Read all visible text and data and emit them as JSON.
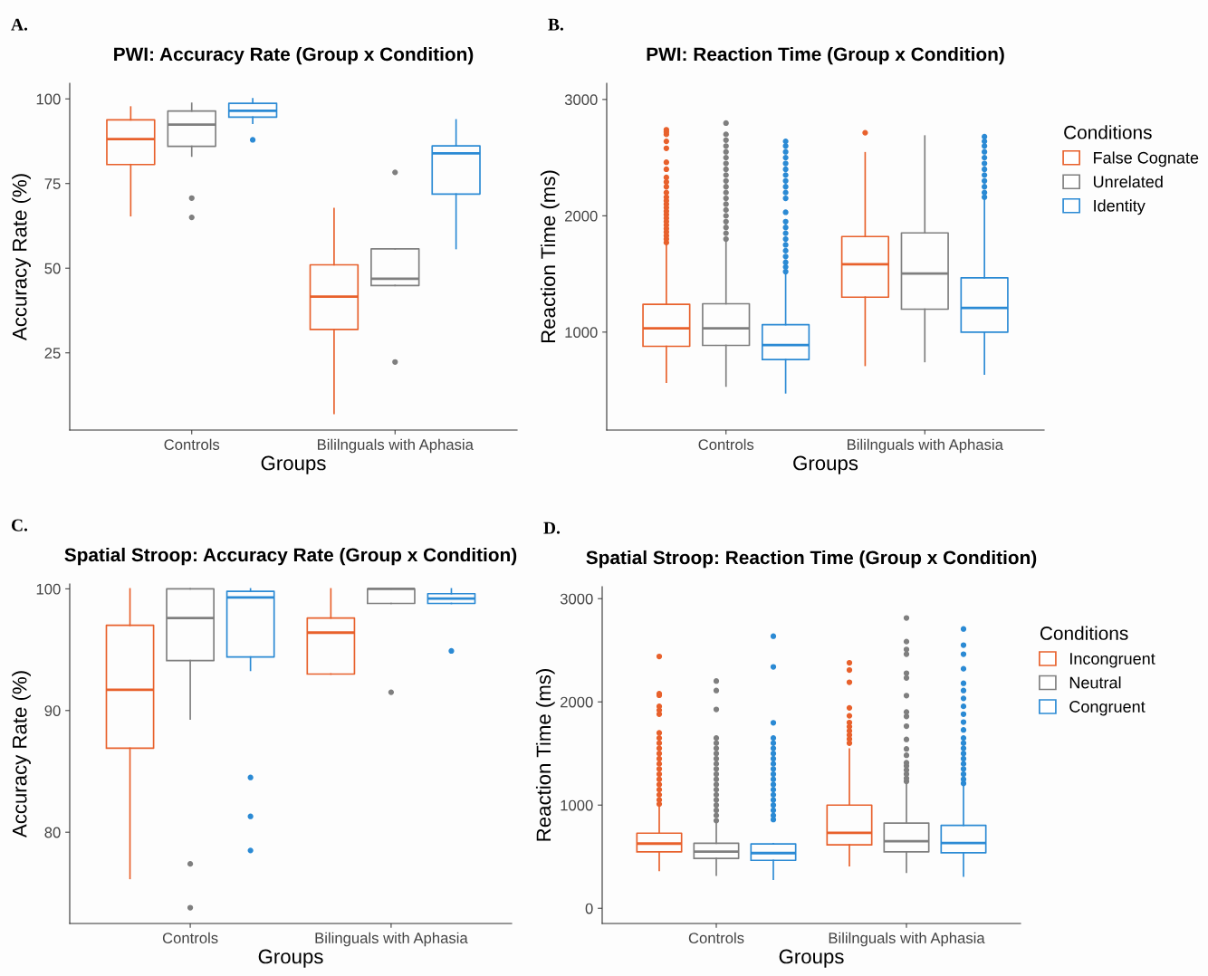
{
  "chart_data": [
    {
      "type": "box",
      "title": "PWI: Accuracy Rate (Group x Condition)",
      "xlabel": "Groups",
      "ylabel": "Accuracy Rate (%)",
      "annotations": [
        "A."
      ],
      "categories": [
        "Controls",
        "Bililnguals with Aphasia"
      ],
      "ylim": [
        2.2,
        104.6
      ],
      "yticks": [
        25,
        50,
        75,
        100
      ],
      "grid": false,
      "legend": false,
      "series": [
        {
          "color": "#e8612c",
          "boxes": [
            {
              "low": 65.5,
              "q1": 80.6,
              "median": 88.1,
              "q3": 93.8,
              "high": 97.6
            },
            {
              "low": 7.1,
              "q1": 31.9,
              "median": 41.6,
              "q3": 51.0,
              "high": 67.6
            }
          ]
        },
        {
          "color": "#7f7f7f",
          "boxes": [
            {
              "low": 83.1,
              "q1": 86.0,
              "median": 92.4,
              "q3": 96.4,
              "high": 98.7,
              "outliers": [
                70.7,
                65.0
              ]
            },
            {
              "low": 44.9,
              "q1": 44.9,
              "median": 46.9,
              "q3": 55.7,
              "high": 55.7,
              "outliers": [
                78.3,
                22.3
              ]
            }
          ]
        },
        {
          "color": "#2b8ad4",
          "boxes": [
            {
              "low": 92.8,
              "q1": 94.6,
              "median": 96.5,
              "q3": 98.7,
              "high": 100,
              "outliers": [
                87.9
              ]
            },
            {
              "low": 55.8,
              "q1": 71.9,
              "median": 83.9,
              "q3": 86.1,
              "high": 93.8
            }
          ]
        }
      ]
    },
    {
      "type": "box",
      "title": "PWI: Reaction Time (Group x Condition)",
      "xlabel": "Groups",
      "ylabel": "Reaction Time (ms)",
      "annotations": [
        "B."
      ],
      "categories": [
        "Controls",
        "Bililnguals with Aphasia"
      ],
      "ylim": [
        158,
        3139
      ],
      "yticks": [
        1000,
        2000,
        3000
      ],
      "grid": false,
      "legend": "right",
      "legend_title": "Conditions",
      "series": [
        {
          "name": "False Cognate",
          "color": "#e8612c",
          "boxes": [
            {
              "low": 569,
              "q1": 878,
              "median": 1033,
              "q3": 1239,
              "high": 1764,
              "outliers": [
                1770,
                1800,
                1830,
                1860,
                1890,
                1920,
                1950,
                1980,
                2010,
                2040,
                2070,
                2100,
                2130,
                2160,
                2200,
                2250,
                2290,
                2330,
                2400,
                2460,
                2580,
                2640,
                2700,
                2720,
                2740
              ]
            },
            {
              "low": 714,
              "q1": 1300,
              "median": 1583,
              "q3": 1822,
              "high": 2542,
              "outliers": [
                2714
              ]
            }
          ]
        },
        {
          "name": "Unrelated",
          "color": "#7f7f7f",
          "boxes": [
            {
              "low": 536,
              "q1": 886,
              "median": 1033,
              "q3": 1244,
              "high": 1792,
              "outliers": [
                1800,
                1850,
                1900,
                1950,
                2000,
                2050,
                2100,
                2150,
                2200,
                2250,
                2300,
                2350,
                2400,
                2450,
                2500,
                2550,
                2600,
                2650,
                2700,
                2797
              ]
            },
            {
              "low": 747,
              "q1": 1197,
              "median": 1503,
              "q3": 1853,
              "high": 2686
            }
          ]
        },
        {
          "name": "Identity",
          "color": "#2b8ad4",
          "boxes": [
            {
              "low": 478,
              "q1": 764,
              "median": 889,
              "q3": 1064,
              "high": 1514,
              "outliers": [
                1520,
                1560,
                1600,
                1650,
                1700,
                1750,
                1800,
                1850,
                1900,
                1950,
                2030,
                2150,
                2200,
                2250,
                2300,
                2350,
                2400,
                2450,
                2500,
                2550,
                2600,
                2640
              ]
            },
            {
              "low": 639,
              "q1": 1000,
              "median": 1208,
              "q3": 1467,
              "high": 2153,
              "outliers": [
                2160,
                2200,
                2250,
                2300,
                2350,
                2400,
                2450,
                2500,
                2550,
                2600,
                2640,
                2680
              ]
            }
          ]
        }
      ]
    },
    {
      "type": "box",
      "title": "Spatial Stroop: Accuracy Rate (Group x Condition)",
      "xlabel": "Groups",
      "ylabel": "Accuracy Rate (%)",
      "annotations": [
        "C."
      ],
      "categories": [
        "Controls",
        "Bilinguals with Aphasia"
      ],
      "ylim": [
        72.5,
        100.4
      ],
      "yticks": [
        80,
        90,
        100
      ],
      "grid": false,
      "legend": false,
      "series": [
        {
          "color": "#e8612c",
          "boxes": [
            {
              "low": 76.2,
              "q1": 86.9,
              "median": 91.7,
              "q3": 97.0,
              "high": 100
            },
            {
              "low": 93.0,
              "q1": 93.0,
              "median": 96.4,
              "q3": 97.6,
              "high": 100
            }
          ]
        },
        {
          "color": "#7f7f7f",
          "boxes": [
            {
              "low": 89.3,
              "q1": 94.1,
              "median": 97.6,
              "q3": 100,
              "high": 100,
              "outliers": [
                77.4,
                73.8
              ]
            },
            {
              "low": 98.8,
              "q1": 98.8,
              "median": 100,
              "q3": 100,
              "high": 100,
              "outliers": [
                91.5
              ]
            }
          ]
        },
        {
          "color": "#2b8ad4",
          "boxes": [
            {
              "low": 93.3,
              "q1": 94.4,
              "median": 99.3,
              "q3": 99.8,
              "high": 100,
              "outliers": [
                84.5,
                81.3,
                78.5
              ]
            },
            {
              "low": 98.8,
              "q1": 98.8,
              "median": 99.2,
              "q3": 99.6,
              "high": 100,
              "outliers": [
                94.9
              ]
            }
          ]
        }
      ]
    },
    {
      "type": "box",
      "title": "Spatial Stroop: Reaction Time (Group x Condition)",
      "xlabel": "Groups",
      "ylabel": "Reaction Time (ms)",
      "annotations": [
        "D."
      ],
      "categories": [
        "Controls",
        "Bililnguals with Aphasia"
      ],
      "ylim": [
        -147,
        3116
      ],
      "yticks": [
        0,
        1000,
        2000,
        3000
      ],
      "grid": false,
      "legend": "right",
      "legend_title": "Conditions",
      "series": [
        {
          "name": "Incongruent",
          "color": "#e8612c",
          "boxes": [
            {
              "low": 367,
              "q1": 547,
              "median": 627,
              "q3": 728,
              "high": 985,
              "outliers": [
                1010,
                1050,
                1100,
                1150,
                1200,
                1250,
                1300,
                1350,
                1400,
                1450,
                1500,
                1550,
                1600,
                1650,
                1700,
                1881,
                1920,
                1957,
                2064,
                2080,
                2440
              ]
            },
            {
              "low": 413,
              "q1": 615,
              "median": 731,
              "q3": 1000,
              "high": 1544,
              "outliers": [
                1600,
                1640,
                1680,
                1720,
                1760,
                1800,
                1865,
                1942,
                2190,
                2309,
                2379
              ]
            }
          ]
        },
        {
          "name": "Neutral",
          "color": "#7f7f7f",
          "boxes": [
            {
              "low": 321,
              "q1": 483,
              "median": 550,
              "q3": 630,
              "high": 841,
              "outliers": [
                850,
                900,
                950,
                1000,
                1050,
                1100,
                1150,
                1200,
                1250,
                1300,
                1350,
                1400,
                1450,
                1500,
                1550,
                1600,
                1650,
                1927,
                2110,
                2202
              ]
            },
            {
              "low": 349,
              "q1": 547,
              "median": 651,
              "q3": 826,
              "high": 1223,
              "outliers": [
                1230,
                1260,
                1300,
                1340,
                1380,
                1410,
                1483,
                1544,
                1636,
                1765,
                1859,
                1902,
                2061,
                2232,
                2278,
                2462,
                2508,
                2584,
                2813
              ]
            }
          ]
        },
        {
          "name": "Congruent",
          "color": "#2b8ad4",
          "boxes": [
            {
              "low": 281,
              "q1": 465,
              "median": 535,
              "q3": 624,
              "high": 627,
              "outliers": [
                860,
                900,
                950,
                1000,
                1050,
                1100,
                1150,
                1200,
                1250,
                1300,
                1350,
                1400,
                1450,
                1500,
                1550,
                1600,
                1650,
                1798,
                2339,
                2636
              ]
            },
            {
              "low": 312,
              "q1": 538,
              "median": 633,
              "q3": 804,
              "high": 1208,
              "outliers": [
                1210,
                1250,
                1300,
                1350,
                1400,
                1450,
                1500,
                1550,
                1600,
                1650,
                1728,
                1804,
                1881,
                1957,
                2034,
                2110,
                2180,
                2321,
                2462,
                2550,
                2706
              ]
            }
          ]
        }
      ]
    }
  ]
}
